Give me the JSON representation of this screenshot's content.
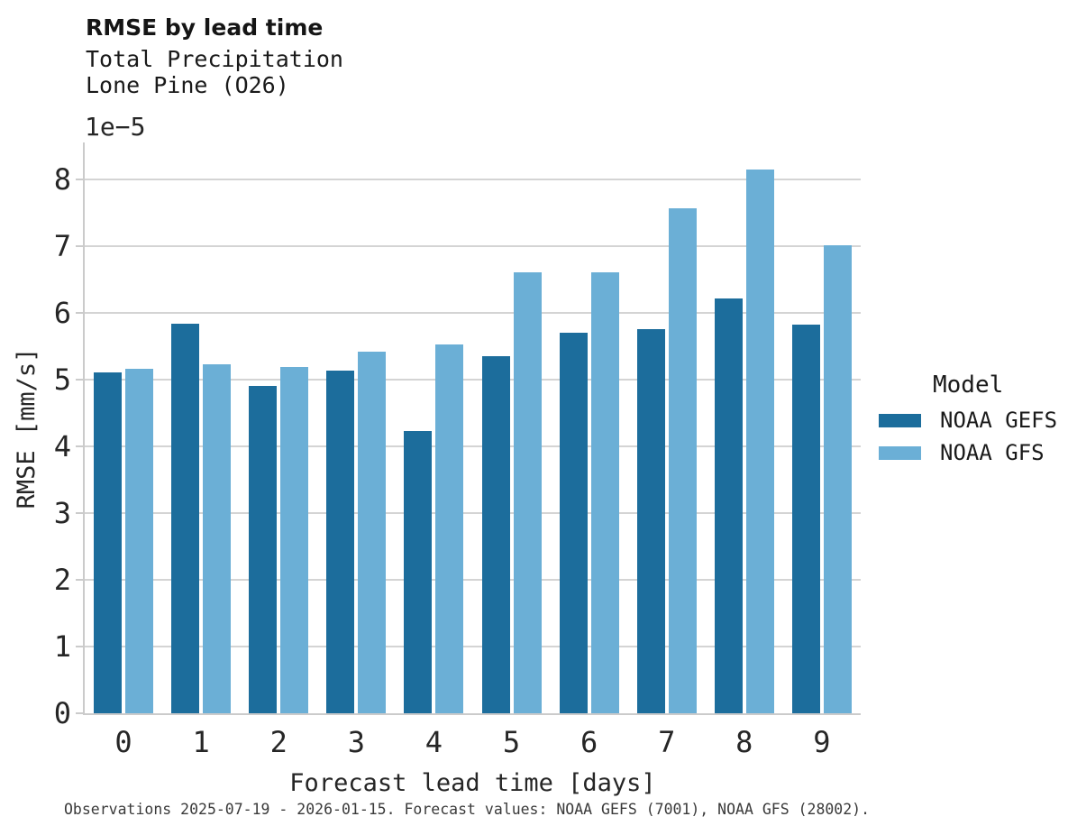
{
  "figure": {
    "title": "RMSE by lead time",
    "subtitle_line1": "Total Precipitation",
    "subtitle_line2": "Lone Pine (O26)",
    "offset_text": "1e−5",
    "footer": "Observations 2025-07-19 - 2026-01-15. Forecast values: NOAA GEFS (7001), NOAA GFS (28002)."
  },
  "colors": {
    "series_dark": "#1c6d9c",
    "series_light": "#6bafd6",
    "gridline": "#d4d4d4",
    "spine": "#cbcbcb",
    "text": "#262626"
  },
  "legend": {
    "title": "Model",
    "items": [
      {
        "label": "NOAA GEFS",
        "color": "#1c6d9c"
      },
      {
        "label": "NOAA GFS",
        "color": "#6bafd6"
      }
    ]
  },
  "chart_data": {
    "type": "bar",
    "title": "RMSE by lead time",
    "subtitle": [
      "Total Precipitation",
      "Lone Pine (O26)"
    ],
    "xlabel": "Forecast lead time [days]",
    "ylabel": "RMSE [mm/s]",
    "y_offset_text": "1e−5",
    "y_unit_scale": "values are ×1e-5 mm/s",
    "categories": [
      "0",
      "1",
      "2",
      "3",
      "4",
      "5",
      "6",
      "7",
      "8",
      "9"
    ],
    "series": [
      {
        "name": "NOAA GEFS",
        "color": "#1c6d9c",
        "values": [
          5.1,
          5.84,
          4.91,
          5.13,
          4.23,
          5.35,
          5.7,
          5.75,
          6.22,
          5.82
        ]
      },
      {
        "name": "NOAA GFS",
        "color": "#6bafd6",
        "values": [
          5.16,
          5.23,
          5.19,
          5.42,
          5.53,
          6.61,
          6.6,
          7.57,
          8.15,
          7.01
        ]
      }
    ],
    "ylim": [
      0,
      8.55
    ],
    "yticks": [
      0,
      1,
      2,
      3,
      4,
      5,
      6,
      7,
      8
    ],
    "grid": "horizontal",
    "legend_title": "Model",
    "legend_position": "right"
  }
}
